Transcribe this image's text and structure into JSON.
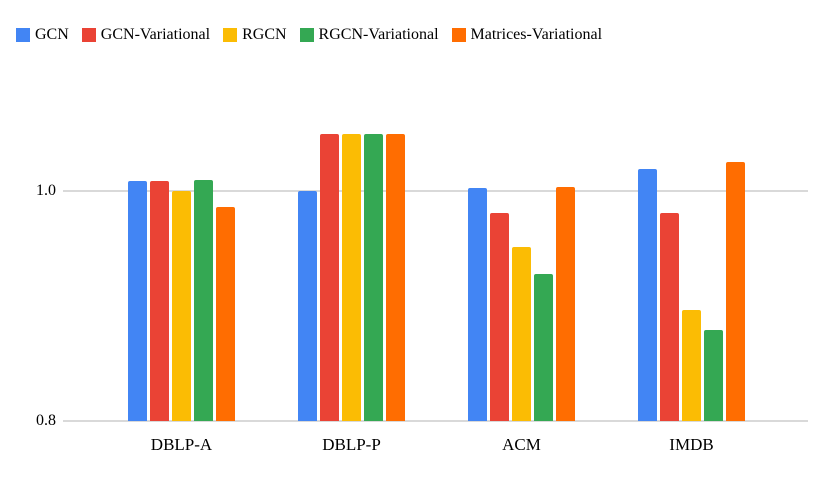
{
  "page": {
    "background": "#ffffff",
    "text_color": "#000000",
    "gridline_color": "#d9d9d9"
  },
  "chart_data": {
    "type": "bar",
    "title": "",
    "xlabel": "",
    "ylabel": "",
    "categories": [
      "DBLP-A",
      "DBLP-P",
      "ACM",
      "IMDB"
    ],
    "series": [
      {
        "name": "GCN",
        "color": "#4285F4",
        "values": [
          1.009,
          1.0,
          1.003,
          1.019
        ]
      },
      {
        "name": "GCN-Variational",
        "color": "#EA4335",
        "values": [
          1.009,
          1.05,
          0.981,
          0.981
        ]
      },
      {
        "name": "RGCN",
        "color": "#FBBC04",
        "values": [
          1.0,
          1.05,
          0.951,
          0.897
        ]
      },
      {
        "name": "RGCN-Variational",
        "color": "#34A853",
        "values": [
          1.01,
          1.05,
          0.928,
          0.879
        ]
      },
      {
        "name": "Matrices-Variational",
        "color": "#FF6D01",
        "values": [
          0.986,
          1.05,
          1.004,
          1.025
        ]
      }
    ],
    "yticks": [
      {
        "value": 0.8,
        "label": "0.8"
      },
      {
        "value": 1.0,
        "label": "1.0"
      }
    ],
    "ylim": [
      0.8,
      1.075
    ],
    "grid": "horizontal-only",
    "legend_position": "top"
  }
}
